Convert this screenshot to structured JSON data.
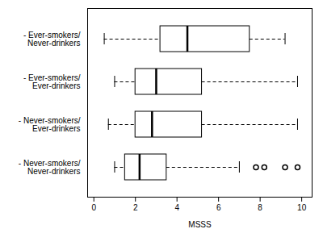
{
  "chart_data": {
    "type": "box",
    "orientation": "horizontal",
    "categories": [
      "- Ever-smokers/\nNever-drinkers",
      "- Ever-smokers/\nEver-drinkers",
      "- Never-smokers/\nEver-drinkers",
      "- Never-smokers/\nNever-drinkers"
    ],
    "boxes": [
      {
        "whislo": 0.5,
        "q1": 3.2,
        "med": 4.5,
        "q3": 7.5,
        "whishi": 9.2,
        "fliers": []
      },
      {
        "whislo": 1.0,
        "q1": 2.0,
        "med": 3.0,
        "q3": 5.2,
        "whishi": 9.8,
        "fliers": []
      },
      {
        "whislo": 0.7,
        "q1": 2.0,
        "med": 2.8,
        "q3": 5.2,
        "whishi": 9.8,
        "fliers": []
      },
      {
        "whislo": 1.0,
        "q1": 1.5,
        "med": 2.2,
        "q3": 3.5,
        "whishi": 7.0,
        "fliers": [
          7.8,
          8.2,
          9.2,
          9.8
        ]
      }
    ],
    "xlabel": "MSSS",
    "xlim": [
      -0.3,
      10.5
    ],
    "xticks": [
      0,
      2,
      4,
      6,
      8,
      10
    ],
    "color": "white",
    "line_style": "dashed",
    "marker": "o",
    "grid": false
  }
}
